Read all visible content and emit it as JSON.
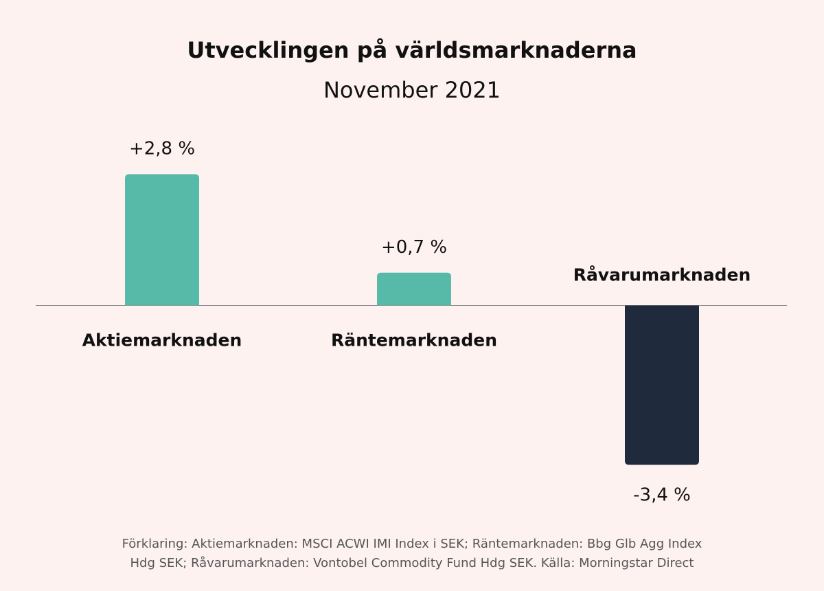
{
  "colors": {
    "background": "#fdf2f0",
    "positive_bar": "#57b9a7",
    "negative_bar": "#1f2a3c",
    "axis": "#8a8a8a",
    "text": "#111111"
  },
  "chart_data": {
    "type": "bar",
    "title": "Utvecklingen på världsmarknaderna",
    "subtitle": "November 2021",
    "categories": [
      "Aktiemarknaden",
      "Räntemarknaden",
      "Råvarumarknaden"
    ],
    "values": [
      2.8,
      0.7,
      -3.4
    ],
    "value_labels": [
      "+2,8 %",
      "+0,7 %",
      "-3,4 %"
    ],
    "unit": "%",
    "ylim": [
      -3.4,
      2.8
    ],
    "grid": false,
    "legend": "none"
  },
  "footnote": {
    "line1": "Förklaring: Aktiemarknaden: MSCI ACWI IMI Index i SEK; Räntemarknaden: Bbg Glb Agg Index",
    "line2": "Hdg SEK; Råvarumarknaden: Vontobel Commodity Fund Hdg SEK. Källa: Morningstar Direct"
  }
}
